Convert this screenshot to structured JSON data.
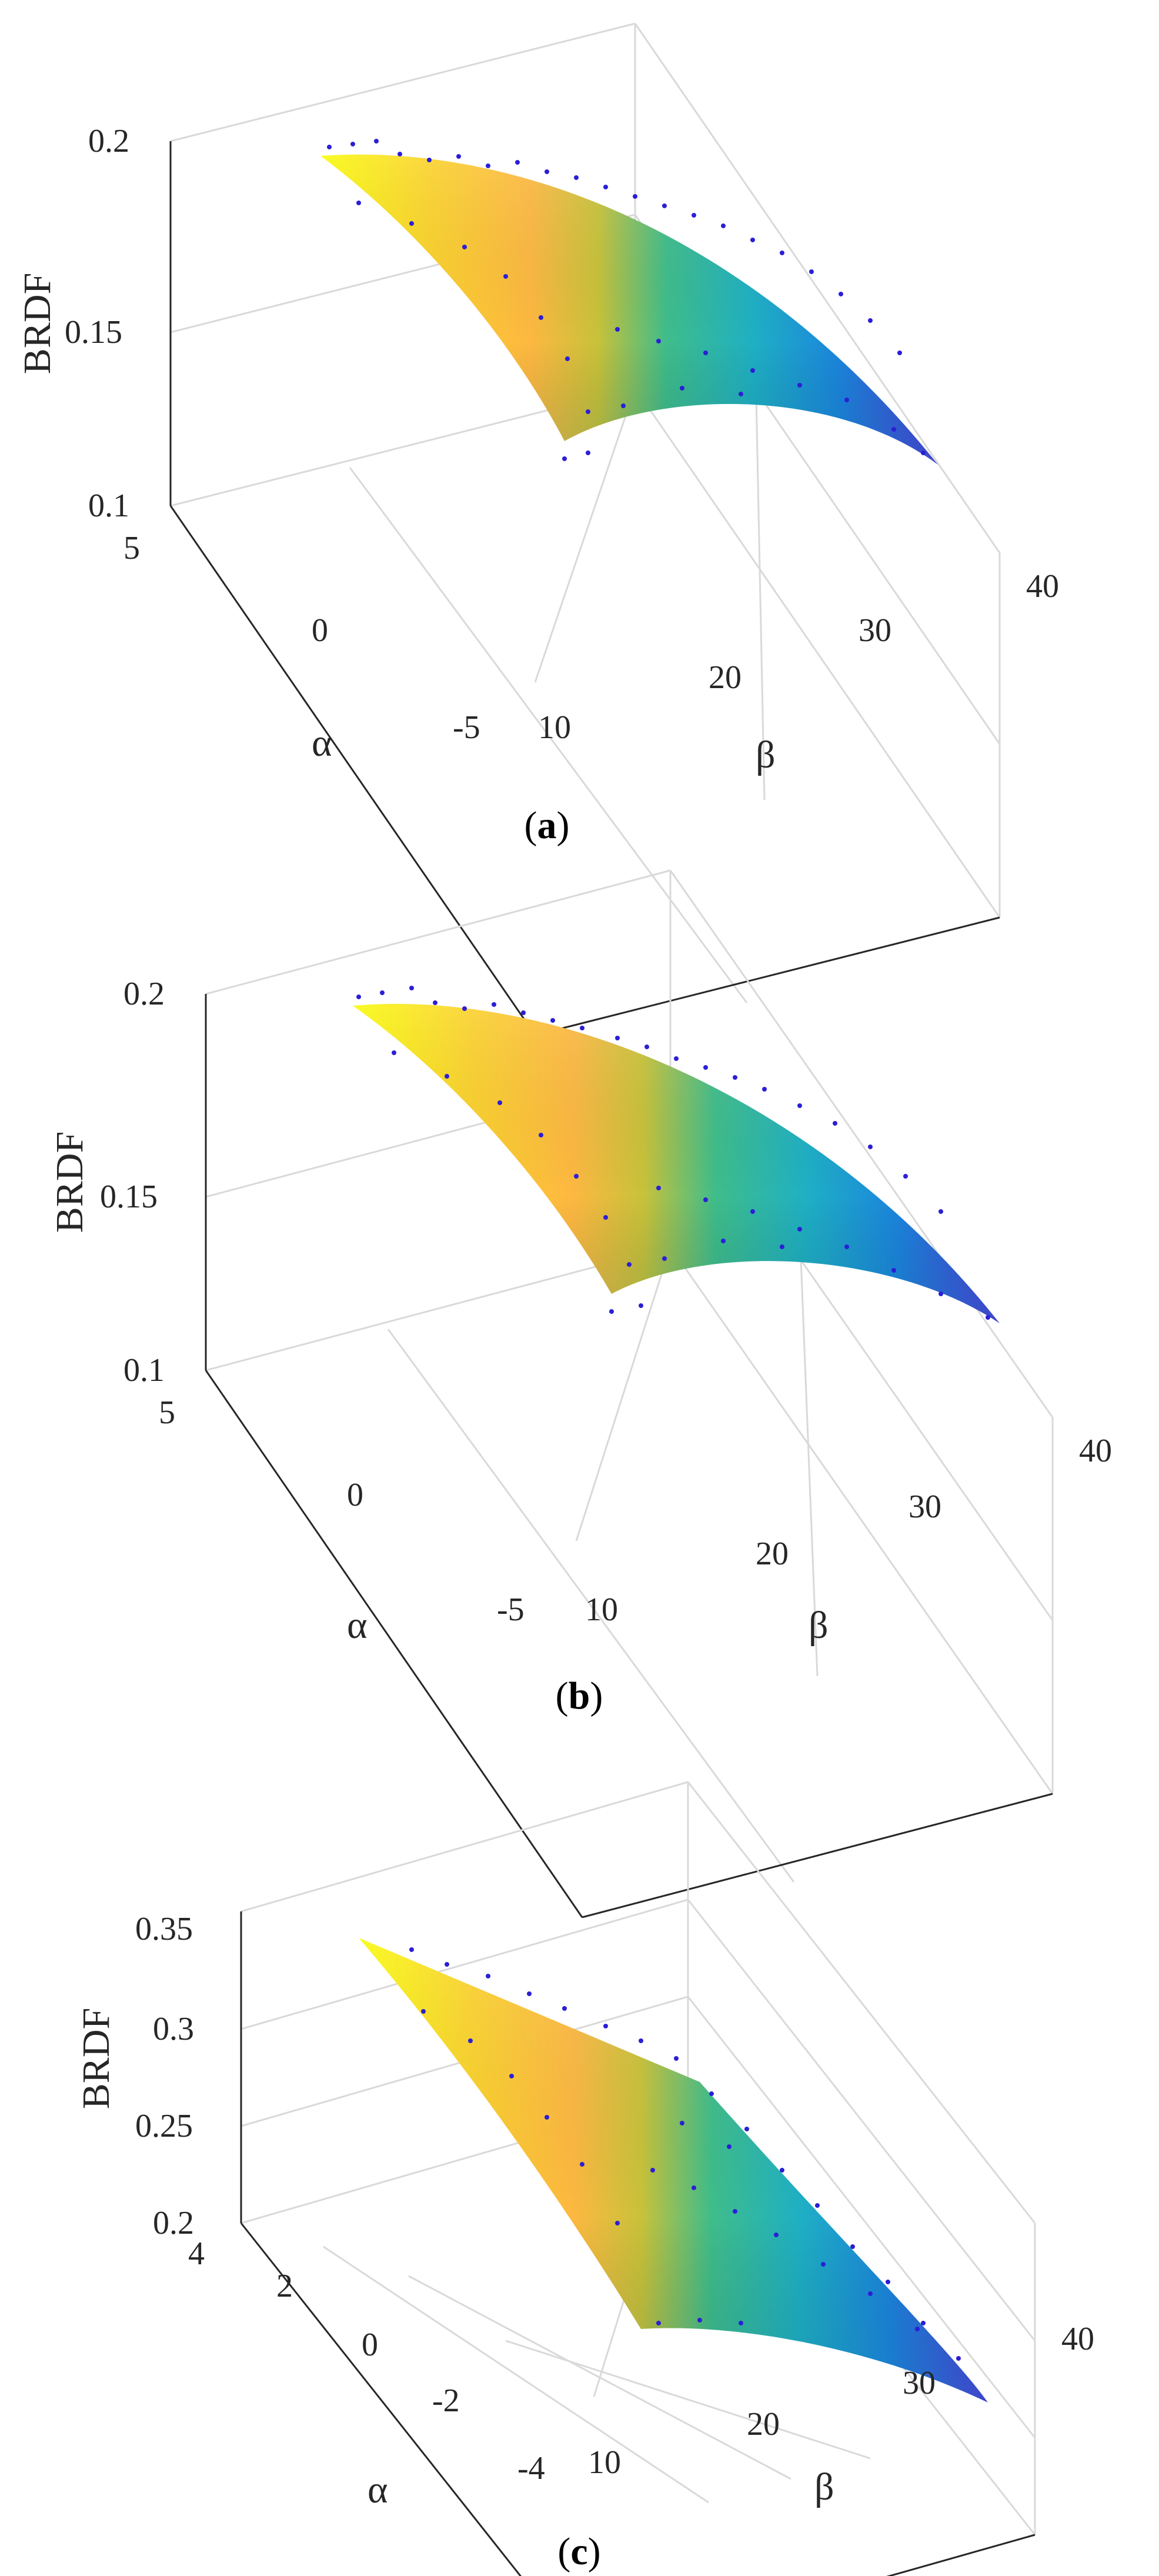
{
  "chart_data": [
    {
      "type": "surface",
      "caption_open": "(",
      "caption_letter": "a",
      "caption_close": ")",
      "zlabel": "BRDF",
      "xlabel": "α",
      "ylabel": "β",
      "x_ticks": [
        "5",
        "0",
        "-5"
      ],
      "y_ticks": [
        "10",
        "20",
        "30",
        "40"
      ],
      "z_ticks": [
        "0.1",
        "0.15",
        "0.2"
      ],
      "xlim": [
        -5,
        5
      ],
      "ylim": [
        10,
        40
      ],
      "zlim": [
        0.1,
        0.2
      ],
      "grid": true,
      "colormap": "parula",
      "markers": "blue dots",
      "surface_corners": {
        "alpha_plus5_beta_10": 0.197,
        "alpha_minus5_beta_10": 0.13,
        "alpha_plus5_beta_40": 0.175,
        "alpha_minus5_beta_40": 0.116
      }
    },
    {
      "type": "surface",
      "caption_open": "(",
      "caption_letter": "b",
      "caption_close": ")",
      "zlabel": "BRDF",
      "xlabel": "α",
      "ylabel": "β",
      "x_ticks": [
        "5",
        "0",
        "-5"
      ],
      "y_ticks": [
        "10",
        "20",
        "30",
        "40"
      ],
      "z_ticks": [
        "0.1",
        "0.15",
        "0.2"
      ],
      "xlim": [
        -5,
        5
      ],
      "ylim": [
        10,
        40
      ],
      "zlim": [
        0.1,
        0.2
      ],
      "grid": true,
      "colormap": "parula",
      "markers": "blue dots",
      "surface_corners": {
        "alpha_plus5_beta_10": 0.197,
        "alpha_minus5_beta_10": 0.13,
        "alpha_plus5_beta_40": 0.177,
        "alpha_minus5_beta_40": 0.118
      }
    },
    {
      "type": "surface",
      "caption_open": "(",
      "caption_letter": "c",
      "caption_close": ")",
      "zlabel": "BRDF",
      "xlabel": "α",
      "ylabel": "β",
      "x_ticks": [
        "4",
        "2",
        "0",
        "-2",
        "-4"
      ],
      "y_ticks": [
        "10",
        "20",
        "30",
        "40"
      ],
      "z_ticks": [
        "0.2",
        "0.25",
        "0.3",
        "0.35"
      ],
      "xlim": [
        -4,
        4
      ],
      "ylim": [
        10,
        40
      ],
      "zlim": [
        0.2,
        0.38
      ],
      "grid": true,
      "colormap": "parula",
      "markers": "blue dots",
      "surface_corners": {
        "alpha_plus4_beta_10": 0.358,
        "alpha_minus4_beta_10": 0.24,
        "alpha_plus4_beta_40": 0.32,
        "alpha_minus4_beta_40": 0.2
      }
    }
  ]
}
